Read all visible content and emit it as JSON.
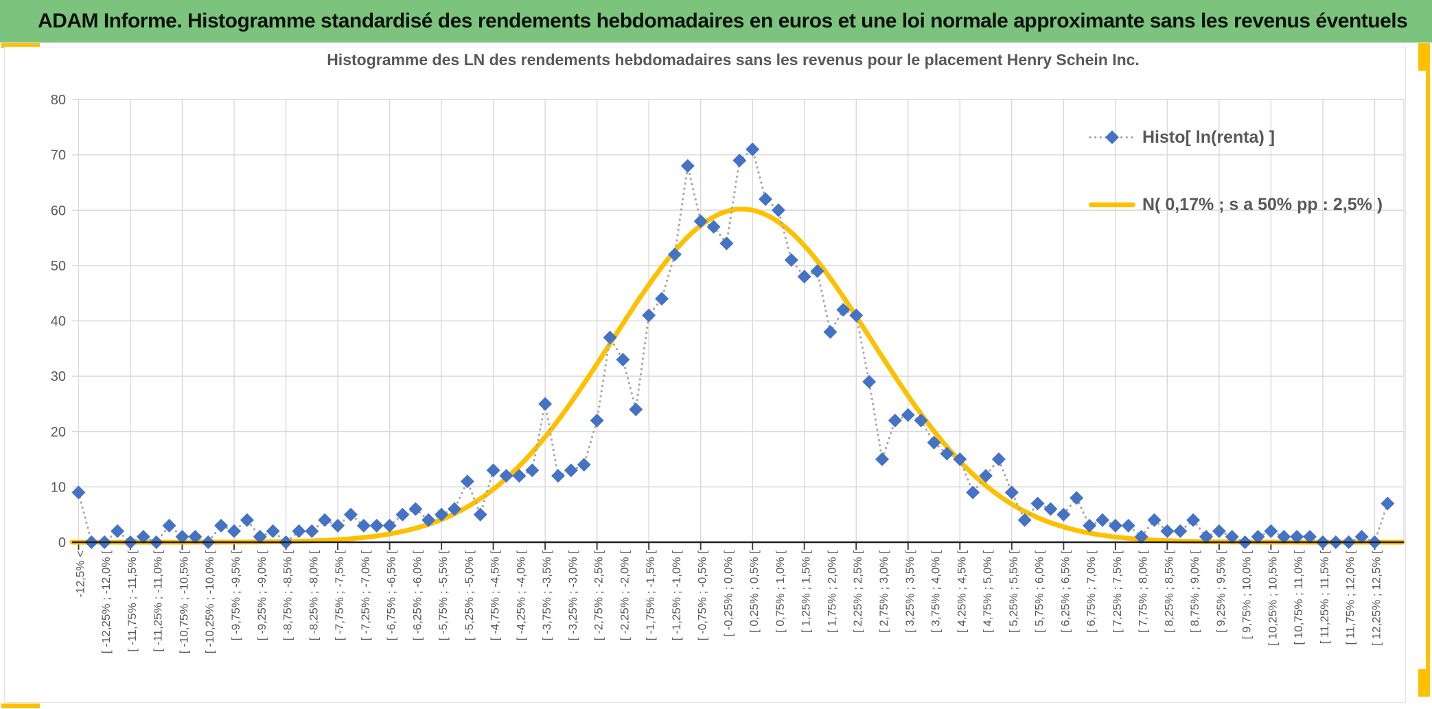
{
  "header": {
    "title": "ADAM Informe. Histogramme standardisé des rendements hebdomadaires en euros et une loi normale approximante sans les revenus éventuels"
  },
  "chart_data": {
    "type": "line",
    "title": "Histogramme des LN des rendements hebdomadaires sans les revenus pour le placement Henry Schein Inc.",
    "ylim": [
      0,
      80
    ],
    "yticks": [
      0,
      10,
      20,
      30,
      40,
      50,
      60,
      70,
      80
    ],
    "grid": true,
    "legend_position": "top-right",
    "n_bins": 102,
    "bin_width_pct": 0.25,
    "label_every_n_bins": 2,
    "categories_labeled": [
      "-12,5% <",
      "[ -12,25% ; -12,0% [",
      "[ -11,75% ; -11,5% [",
      "[ -11,25% ; -11,0% [",
      "[ -10,75% ; -10,5% [",
      "[ -10,25% ; -10,0% [",
      "[ -9,75% ; -9,5% [",
      "[ -9,25% ; -9,0% [",
      "[ -8,75% ; -8,5% [",
      "[ -8,25% ; -8,0% [",
      "[ -7,75% ; -7,5% [",
      "[ -7,25% ; -7,0% [",
      "[ -6,75% ; -6,5% [",
      "[ -6,25% ; -6,0% [",
      "[ -5,75% ; -5,5% [",
      "[ -5,25% ; -5,0% [",
      "[ -4,75% ; -4,5% [",
      "[ -4,25% ; -4,0% [",
      "[ -3,75% ; -3,5% [",
      "[ -3,25% ; -3,0% [",
      "[ -2,75% ; -2,5% [",
      "[ -2,25% ; -2,0% [",
      "[ -1,75% ; -1,5% [",
      "[ -1,25% ; -1,0% [",
      "[ -0,75% ; -0,5% [",
      "[ -0,25% ; 0,0% [",
      "[ 0,25% ; 0,5% [",
      "[ 0,75% ; 1,0% [",
      "[ 1,25% ; 1,5% [",
      "[ 1,75% ; 2,0% [",
      "[ 2,25% ; 2,5% [",
      "[ 2,75% ; 3,0% [",
      "[ 3,25% ; 3,5% [",
      "[ 3,75% ; 4,0% [",
      "[ 4,25% ; 4,5% [",
      "[ 4,75% ; 5,0% [",
      "[ 5,25% ; 5,5% [",
      "[ 5,75% ; 6,0% [",
      "[ 6,25% ; 6,5% [",
      "[ 6,75% ; 7,0% [",
      "[ 7,25% ; 7,5% [",
      "[ 7,75% ; 8,0% [",
      "[ 8,25% ; 8,5% [",
      "[ 8,75% ; 9,0% [",
      "[ 9,25% ; 9,5% [",
      "[ 9,75% ; 10,0% [",
      "[ 10,25% ; 10,5% [",
      "[ 10,75% ; 11,0% [",
      "[ 11,25% ; 11,5% [",
      "[ 11,75% ; 12,0% [",
      "[ 12,25% ; 12,5% ["
    ],
    "series": [
      {
        "name": "Histo[ ln(renta) ]",
        "type": "scatter-line",
        "marker": "diamond",
        "marker_color": "#4472C4",
        "line_color": "#A6A6A6",
        "line_style": "dotted",
        "values": [
          9,
          0,
          0,
          2,
          0,
          1,
          0,
          3,
          1,
          1,
          0,
          3,
          2,
          4,
          1,
          2,
          0,
          2,
          2,
          4,
          3,
          5,
          3,
          3,
          3,
          5,
          6,
          4,
          5,
          6,
          11,
          5,
          13,
          12,
          12,
          13,
          25,
          12,
          13,
          14,
          22,
          37,
          33,
          24,
          41,
          44,
          52,
          68,
          58,
          57,
          54,
          69,
          71,
          62,
          60,
          51,
          48,
          49,
          38,
          42,
          41,
          29,
          15,
          22,
          23,
          22,
          18,
          16,
          15,
          9,
          12,
          15,
          9,
          4,
          7,
          6,
          5,
          8,
          3,
          4,
          3,
          3,
          1,
          4,
          2,
          2,
          4,
          1,
          2,
          1,
          0,
          1,
          2,
          1,
          1,
          1,
          0,
          0,
          0,
          1,
          0,
          7
        ]
      },
      {
        "name": "N( 0,17% ; s a 50% pp : 2,5% )",
        "type": "normal-curve",
        "color": "#FFC000",
        "mean_pct": "0,17%",
        "stdev_pct": "2,5%",
        "peak_value": 60.2,
        "mean_bin_index": 51.18,
        "sigma_in_bins": 10
      }
    ]
  },
  "colors": {
    "title_bar_bg": "#7CC47D",
    "accent_gold": "#FFC000",
    "gridline": "#D9D9D9",
    "axis_line": "#1f1f1f",
    "axis_label": "#595959",
    "chart_title": "#595959",
    "histogram_marker": "#4472C4",
    "histogram_dots": "#A6A6A6",
    "normal_curve": "#FFC000"
  }
}
